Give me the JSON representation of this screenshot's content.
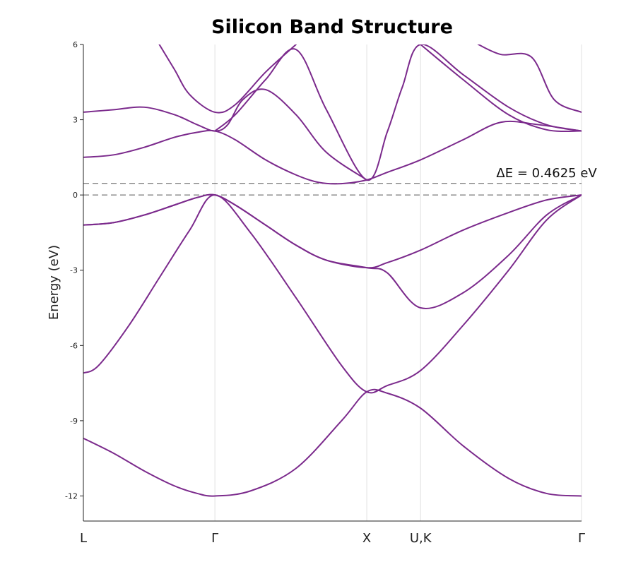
{
  "chart_data": {
    "type": "line",
    "title": "Silicon Band Structure",
    "xlabel": "",
    "ylabel": "Energy (eV)",
    "ylim": [
      -13,
      6
    ],
    "yticks": [
      6,
      3,
      0,
      -3,
      -6,
      -9,
      -12
    ],
    "grid": false,
    "color": "#7b2a8c",
    "kpoints": [
      {
        "label": "L",
        "pos": 0.0
      },
      {
        "label": "Γ",
        "pos": 0.866
      },
      {
        "label": "X",
        "pos": 1.866
      },
      {
        "label": "U,K",
        "pos": 2.22
      },
      {
        "label": "Γ",
        "pos": 3.28
      }
    ],
    "xlim": [
      0,
      3.28
    ],
    "reference_lines": [
      {
        "y": 0.0,
        "style": "dashed"
      },
      {
        "y": 0.4625,
        "style": "dashed"
      }
    ],
    "annotation": {
      "text": "ΔE = 0.4625 eV",
      "x": 3.05,
      "y": 0.6
    },
    "series": [
      {
        "x": [
          0.0,
          0.2,
          0.4,
          0.6,
          0.75,
          0.866,
          1.1,
          1.4,
          1.7,
          1.866,
          2.0,
          2.22,
          2.5,
          2.8,
          3.05,
          3.28
        ],
        "y": [
          -9.7,
          -10.3,
          -11.0,
          -11.6,
          -11.9,
          -12.0,
          -11.8,
          -10.9,
          -9.0,
          -7.85,
          -7.9,
          -8.5,
          -10.0,
          -11.3,
          -11.9,
          -12.0
        ]
      },
      {
        "x": [
          0.0,
          0.1,
          0.3,
          0.5,
          0.7,
          0.866,
          1.1,
          1.4,
          1.7,
          1.866,
          2.0,
          2.22,
          2.5,
          2.8,
          3.05,
          3.28
        ],
        "y": [
          -7.1,
          -6.8,
          -5.2,
          -3.3,
          -1.4,
          0.0,
          -1.5,
          -4.1,
          -6.8,
          -7.85,
          -7.6,
          -7.0,
          -5.2,
          -3.0,
          -1.0,
          0.0
        ]
      },
      {
        "x": [
          0.0,
          0.2,
          0.4,
          0.6,
          0.75,
          0.866,
          1.0,
          1.2,
          1.4,
          1.6,
          1.866,
          2.0,
          2.22,
          2.5,
          2.8,
          3.05,
          3.28
        ],
        "y": [
          -1.2,
          -1.1,
          -0.8,
          -0.4,
          -0.1,
          0.0,
          -0.4,
          -1.2,
          -2.0,
          -2.6,
          -2.9,
          -3.1,
          -4.5,
          -3.9,
          -2.4,
          -0.8,
          0.0
        ]
      },
      {
        "x": [
          0.0,
          0.2,
          0.4,
          0.6,
          0.75,
          0.866,
          1.0,
          1.2,
          1.4,
          1.6,
          1.866,
          2.0,
          2.22,
          2.5,
          2.8,
          3.05,
          3.28
        ],
        "y": [
          -1.2,
          -1.1,
          -0.8,
          -0.4,
          -0.1,
          0.0,
          -0.4,
          -1.2,
          -2.0,
          -2.6,
          -2.9,
          -2.7,
          -2.2,
          -1.4,
          -0.7,
          -0.2,
          0.0
        ]
      },
      {
        "x": [
          0.0,
          0.2,
          0.4,
          0.6,
          0.75,
          0.866,
          1.0,
          1.2,
          1.4,
          1.55,
          1.7,
          1.866,
          2.0,
          2.22,
          2.5,
          2.75,
          3.0,
          3.28
        ],
        "y": [
          1.5,
          1.6,
          1.9,
          2.3,
          2.5,
          2.55,
          2.2,
          1.4,
          0.8,
          0.5,
          0.45,
          0.6,
          0.9,
          1.4,
          2.2,
          2.9,
          2.8,
          2.55
        ]
      },
      {
        "x": [
          0.0,
          0.2,
          0.4,
          0.6,
          0.75,
          0.866,
          0.95,
          1.05,
          1.2,
          1.4,
          1.6,
          1.866
        ],
        "y": [
          3.3,
          3.4,
          3.5,
          3.2,
          2.8,
          2.55,
          2.8,
          3.8,
          4.2,
          3.2,
          1.7,
          0.6
        ]
      },
      {
        "x": [
          0.5,
          0.6,
          0.7,
          0.866,
          1.0,
          1.2,
          1.4
        ],
        "y": [
          6.0,
          5.0,
          4.0,
          3.3,
          3.6,
          4.9,
          6.0
        ]
      },
      {
        "x": [
          0.866,
          1.0,
          1.2,
          1.4,
          1.6,
          1.866,
          2.0,
          2.1,
          2.22,
          2.5,
          2.8,
          3.05,
          3.28
        ],
        "y": [
          2.55,
          3.2,
          4.6,
          5.8,
          3.4,
          0.6,
          2.5,
          4.3,
          6.0,
          4.8,
          3.5,
          2.8,
          2.55
        ]
      },
      {
        "x": [
          2.22,
          2.5,
          2.8,
          3.05,
          3.28
        ],
        "y": [
          6.0,
          4.6,
          3.2,
          2.6,
          2.55
        ]
      },
      {
        "x": [
          2.6,
          2.75,
          2.95,
          3.1,
          3.28
        ],
        "y": [
          6.0,
          5.6,
          5.5,
          3.8,
          3.3
        ]
      }
    ]
  }
}
